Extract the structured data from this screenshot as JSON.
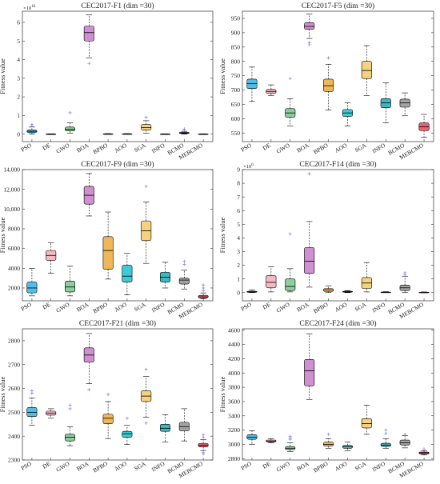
{
  "chart_data": [
    {
      "type": "box",
      "title": "CEC2017-F1 (dim =30)",
      "ylabel": "Fitness value",
      "exponent_label": "×10",
      "exponent_power": "10",
      "categories": [
        "PSO",
        "DE",
        "GWO",
        "BOA",
        "BPBO",
        "AOO",
        "SGA",
        "INFO",
        "BCMO",
        "MEBCMO"
      ],
      "ylim": [
        -0.4,
        6.6
      ],
      "yticks": [
        0,
        1,
        2,
        3,
        4,
        5,
        6
      ],
      "ytick_labels": [
        "0",
        "1",
        "2",
        "3",
        "4",
        "5",
        "6"
      ],
      "boxes": [
        {
          "min": 0.0,
          "q1": 0.08,
          "median": 0.15,
          "q3": 0.23,
          "max": 0.38,
          "outliers": [
            0.45,
            0.52
          ]
        },
        {
          "min": 0.0,
          "q1": 0.0,
          "median": 0.0,
          "q3": 0.01,
          "max": 0.02,
          "outliers": []
        },
        {
          "min": 0.05,
          "q1": 0.17,
          "median": 0.27,
          "q3": 0.38,
          "max": 0.6,
          "outliers": [
            1.15
          ]
        },
        {
          "min": 4.1,
          "q1": 5.0,
          "median": 5.45,
          "q3": 5.8,
          "max": 6.4,
          "outliers": [
            3.8
          ]
        },
        {
          "min": 0.0,
          "q1": 0.0,
          "median": 0.01,
          "q3": 0.02,
          "max": 0.03,
          "outliers": []
        },
        {
          "min": 0.0,
          "q1": 0.0,
          "median": 0.01,
          "q3": 0.02,
          "max": 0.03,
          "outliers": []
        },
        {
          "min": 0.05,
          "q1": 0.22,
          "median": 0.35,
          "q3": 0.52,
          "max": 0.72,
          "outliers": [
            0.9
          ]
        },
        {
          "min": 0.0,
          "q1": 0.0,
          "median": 0.0,
          "q3": 0.01,
          "max": 0.02,
          "outliers": []
        },
        {
          "min": 0.0,
          "q1": 0.03,
          "median": 0.06,
          "q3": 0.1,
          "max": 0.15,
          "outliers": [
            0.22,
            0.28
          ]
        },
        {
          "min": 0.0,
          "q1": 0.0,
          "median": 0.0,
          "q3": 0.01,
          "max": 0.02,
          "outliers": []
        }
      ]
    },
    {
      "type": "box",
      "title": "CEC2017-F5 (dim =30)",
      "ylabel": "Fitness value",
      "exponent_label": "",
      "exponent_power": "",
      "categories": [
        "PSO",
        "DE",
        "GWO",
        "BOA",
        "BPBO",
        "AOO",
        "SGA",
        "INFO",
        "BCMO",
        "MEBCMO"
      ],
      "ylim": [
        520,
        975
      ],
      "yticks": [
        550,
        600,
        650,
        700,
        750,
        800,
        850,
        900,
        950
      ],
      "ytick_labels": [
        "550",
        "600",
        "650",
        "700",
        "750",
        "800",
        "850",
        "900",
        "950"
      ],
      "boxes": [
        {
          "min": 660,
          "q1": 705,
          "median": 722,
          "q3": 738,
          "max": 780,
          "outliers": []
        },
        {
          "min": 680,
          "q1": 688,
          "median": 695,
          "q3": 702,
          "max": 718,
          "outliers": []
        },
        {
          "min": 575,
          "q1": 605,
          "median": 620,
          "q3": 635,
          "max": 670,
          "outliers": [
            740
          ]
        },
        {
          "min": 880,
          "q1": 912,
          "median": 922,
          "q3": 935,
          "max": 965,
          "outliers": [
            858,
            865
          ]
        },
        {
          "min": 630,
          "q1": 695,
          "median": 715,
          "q3": 738,
          "max": 790,
          "outliers": [
            812
          ]
        },
        {
          "min": 575,
          "q1": 608,
          "median": 620,
          "q3": 632,
          "max": 655,
          "outliers": []
        },
        {
          "min": 680,
          "q1": 740,
          "median": 768,
          "q3": 800,
          "max": 855,
          "outliers": []
        },
        {
          "min": 585,
          "q1": 638,
          "median": 655,
          "q3": 670,
          "max": 725,
          "outliers": []
        },
        {
          "min": 610,
          "q1": 640,
          "median": 655,
          "q3": 668,
          "max": 690,
          "outliers": []
        },
        {
          "min": 535,
          "q1": 558,
          "median": 572,
          "q3": 585,
          "max": 615,
          "outliers": []
        }
      ]
    },
    {
      "type": "box",
      "title": "CEC2017-F9 (dim =30)",
      "ylabel": "Fitness value",
      "exponent_label": "",
      "exponent_power": "",
      "categories": [
        "PSO",
        "DE",
        "GWO",
        "BOA",
        "BPBO",
        "AOO",
        "SGA",
        "INFO",
        "BCMO",
        "MEBCMO"
      ],
      "ylim": [
        700,
        14000
      ],
      "yticks": [
        2000,
        4000,
        6000,
        8000,
        10000,
        12000,
        14000
      ],
      "ytick_labels": [
        "2000",
        "4000",
        "6000",
        "8000",
        "10,000",
        "12,000",
        "14,000"
      ],
      "boxes": [
        {
          "min": 1200,
          "q1": 1500,
          "median": 2000,
          "q3": 2600,
          "max": 4000,
          "outliers": []
        },
        {
          "min": 3500,
          "q1": 4800,
          "median": 5300,
          "q3": 5800,
          "max": 6600,
          "outliers": []
        },
        {
          "min": 1200,
          "q1": 1600,
          "median": 2100,
          "q3": 2700,
          "max": 4200,
          "outliers": []
        },
        {
          "min": 9300,
          "q1": 10500,
          "median": 11400,
          "q3": 12300,
          "max": 13600,
          "outliers": []
        },
        {
          "min": 2900,
          "q1": 3900,
          "median": 5800,
          "q3": 7200,
          "max": 9700,
          "outliers": []
        },
        {
          "min": 1300,
          "q1": 2600,
          "median": 3200,
          "q3": 4300,
          "max": 5500,
          "outliers": []
        },
        {
          "min": 4500,
          "q1": 6800,
          "median": 7800,
          "q3": 8800,
          "max": 10700,
          "outliers": [
            12300
          ]
        },
        {
          "min": 2000,
          "q1": 2600,
          "median": 3100,
          "q3": 3600,
          "max": 4600,
          "outliers": []
        },
        {
          "min": 1900,
          "q1": 2400,
          "median": 2800,
          "q3": 3000,
          "max": 3800,
          "outliers": [
            4400,
            4700
          ]
        },
        {
          "min": 900,
          "q1": 1000,
          "median": 1100,
          "q3": 1250,
          "max": 1500,
          "outliers": [
            1700,
            2000,
            2300
          ]
        }
      ]
    },
    {
      "type": "box",
      "title": "CEC2017-F14 (dim =30)",
      "ylabel": "Fitness value",
      "exponent_label": "×10",
      "exponent_power": "6",
      "categories": [
        "PSO",
        "DE",
        "GWO",
        "BOA",
        "BPBO",
        "AOO",
        "SGA",
        "INFO",
        "BCMO",
        "MEBCMO"
      ],
      "ylim": [
        -0.6,
        9
      ],
      "yticks": [
        0,
        1,
        2,
        3,
        4,
        5,
        6,
        7,
        8,
        9
      ],
      "ytick_labels": [
        "0",
        "1",
        "2",
        "3",
        "4",
        "5",
        "6",
        "7",
        "8",
        "9"
      ],
      "boxes": [
        {
          "min": 0.0,
          "q1": 0.02,
          "median": 0.05,
          "q3": 0.1,
          "max": 0.18,
          "outliers": []
        },
        {
          "min": 0.05,
          "q1": 0.35,
          "median": 0.75,
          "q3": 1.25,
          "max": 1.9,
          "outliers": []
        },
        {
          "min": 0.05,
          "q1": 0.15,
          "median": 0.45,
          "q3": 1.0,
          "max": 1.75,
          "outliers": [
            4.3
          ]
        },
        {
          "min": 0.4,
          "q1": 1.4,
          "median": 2.3,
          "q3": 3.3,
          "max": 5.2,
          "outliers": [
            8.7
          ]
        },
        {
          "min": 0.0,
          "q1": 0.08,
          "median": 0.2,
          "q3": 0.3,
          "max": 0.5,
          "outliers": []
        },
        {
          "min": 0.0,
          "q1": 0.03,
          "median": 0.06,
          "q3": 0.1,
          "max": 0.15,
          "outliers": []
        },
        {
          "min": 0.05,
          "q1": 0.3,
          "median": 0.7,
          "q3": 1.1,
          "max": 2.2,
          "outliers": []
        },
        {
          "min": 0.0,
          "q1": 0.01,
          "median": 0.02,
          "q3": 0.04,
          "max": 0.07,
          "outliers": []
        },
        {
          "min": 0.0,
          "q1": 0.15,
          "median": 0.35,
          "q3": 0.55,
          "max": 1.2,
          "outliers": [
            1.3,
            1.45
          ]
        },
        {
          "min": 0.0,
          "q1": 0.01,
          "median": 0.02,
          "q3": 0.03,
          "max": 0.05,
          "outliers": []
        }
      ]
    },
    {
      "type": "box",
      "title": "CEC2017-F21 (dim =30)",
      "ylabel": "Fitness value",
      "exponent_label": "",
      "exponent_power": "",
      "categories": [
        "PSO",
        "DE",
        "GWO",
        "BOA",
        "BPBO",
        "AOO",
        "SGA",
        "INFO",
        "BCMO",
        "MEBCMO"
      ],
      "ylim": [
        2300,
        2850
      ],
      "yticks": [
        2300,
        2400,
        2500,
        2600,
        2700,
        2800
      ],
      "ytick_labels": [
        "2300",
        "2400",
        "2500",
        "2600",
        "2700",
        "2800"
      ],
      "boxes": [
        {
          "min": 2445,
          "q1": 2482,
          "median": 2500,
          "q3": 2520,
          "max": 2560,
          "outliers": [
            2580,
            2590
          ]
        },
        {
          "min": 2475,
          "q1": 2488,
          "median": 2497,
          "q3": 2505,
          "max": 2515,
          "outliers": []
        },
        {
          "min": 2360,
          "q1": 2380,
          "median": 2395,
          "q3": 2408,
          "max": 2440,
          "outliers": [
            2515,
            2530
          ]
        },
        {
          "min": 2620,
          "q1": 2710,
          "median": 2740,
          "q3": 2770,
          "max": 2830,
          "outliers": [
            2595
          ]
        },
        {
          "min": 2390,
          "q1": 2452,
          "median": 2475,
          "q3": 2492,
          "max": 2545,
          "outliers": [
            2575
          ]
        },
        {
          "min": 2365,
          "q1": 2395,
          "median": 2410,
          "q3": 2420,
          "max": 2445,
          "outliers": [
            2475
          ]
        },
        {
          "min": 2480,
          "q1": 2545,
          "median": 2568,
          "q3": 2590,
          "max": 2650,
          "outliers": [
            2455,
            2680
          ]
        },
        {
          "min": 2375,
          "q1": 2420,
          "median": 2433,
          "q3": 2450,
          "max": 2490,
          "outliers": []
        },
        {
          "min": 2380,
          "q1": 2422,
          "median": 2440,
          "q3": 2458,
          "max": 2515,
          "outliers": []
        },
        {
          "min": 2340,
          "q1": 2355,
          "median": 2362,
          "q3": 2370,
          "max": 2385,
          "outliers": [
            2325,
            2332,
            2395,
            2405
          ]
        }
      ]
    },
    {
      "type": "box",
      "title": "CEC2017-F24 (dim =30)",
      "ylabel": "Fitness value",
      "exponent_label": "",
      "exponent_power": "",
      "categories": [
        "PSO",
        "DE",
        "GWO",
        "BOA",
        "BPBO",
        "AOO",
        "SGA",
        "INFO",
        "BCMO",
        "MEBCMO"
      ],
      "ylim": [
        2780,
        4620
      ],
      "yticks": [
        2800,
        3000,
        3200,
        3400,
        3600,
        3800,
        4000,
        4200,
        4400,
        4600
      ],
      "ytick_labels": [
        "2800",
        "3000",
        "3200",
        "3400",
        "3600",
        "3800",
        "4000",
        "4200",
        "4400",
        "4600"
      ],
      "boxes": [
        {
          "min": 3000,
          "q1": 3070,
          "median": 3100,
          "q3": 3135,
          "max": 3190,
          "outliers": []
        },
        {
          "min": 3020,
          "q1": 3035,
          "median": 3045,
          "q3": 3060,
          "max": 3080,
          "outliers": []
        },
        {
          "min": 2900,
          "q1": 2925,
          "median": 2945,
          "q3": 2970,
          "max": 3020,
          "outliers": [
            3070,
            3090,
            3110
          ]
        },
        {
          "min": 3630,
          "q1": 3820,
          "median": 4030,
          "q3": 4190,
          "max": 4550,
          "outliers": []
        },
        {
          "min": 2940,
          "q1": 2975,
          "median": 3000,
          "q3": 3030,
          "max": 3080,
          "outliers": [
            3140
          ]
        },
        {
          "min": 2910,
          "q1": 2945,
          "median": 2965,
          "q3": 2985,
          "max": 3030,
          "outliers": []
        },
        {
          "min": 3140,
          "q1": 3230,
          "median": 3290,
          "q3": 3360,
          "max": 3550,
          "outliers": []
        },
        {
          "min": 2940,
          "q1": 2970,
          "median": 2990,
          "q3": 3015,
          "max": 3080,
          "outliers": [
            3150,
            3200
          ]
        },
        {
          "min": 2950,
          "q1": 2990,
          "median": 3020,
          "q3": 3060,
          "max": 3120,
          "outliers": [
            3140
          ]
        },
        {
          "min": 2850,
          "q1": 2865,
          "median": 2880,
          "q3": 2892,
          "max": 2910,
          "outliers": [
            2935
          ]
        }
      ]
    }
  ],
  "colors": [
    "#4fbfe8",
    "#f6b8c2",
    "#8ccf9b",
    "#cf8fd0",
    "#efb758",
    "#39cbd8",
    "#f6d27e",
    "#3fb7c1",
    "#a3a3a3",
    "#ef5f6f"
  ]
}
